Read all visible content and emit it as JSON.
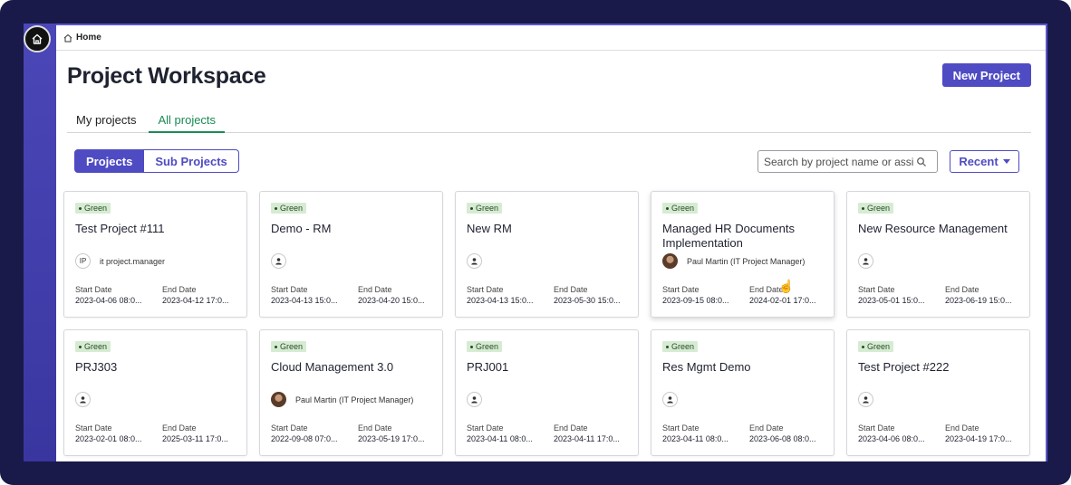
{
  "breadcrumb": {
    "home_label": "Home"
  },
  "page": {
    "title": "Project Workspace",
    "new_project_label": "New Project"
  },
  "tabs": [
    {
      "label": "My projects",
      "active": false
    },
    {
      "label": "All projects",
      "active": true
    }
  ],
  "toggle": {
    "projects_label": "Projects",
    "subprojects_label": "Sub Projects"
  },
  "search": {
    "placeholder": "Search by project name or assi"
  },
  "sort": {
    "label": "Recent"
  },
  "colors": {
    "accent": "#4e4bc3",
    "status_green_bg": "#d6ecd2",
    "tab_active": "#1b8a55"
  },
  "labels": {
    "start": "Start Date",
    "end": "End Date"
  },
  "cards": [
    {
      "status": "Green",
      "title": "Test Project #111",
      "owner": "it project.manager",
      "avatar_initials": "IP",
      "start": "2023-04-06 08:0...",
      "end": "2023-04-12 17:0..."
    },
    {
      "status": "Green",
      "title": "Demo - RM",
      "owner": "",
      "start": "2023-04-13 15:0...",
      "end": "2023-04-20 15:0..."
    },
    {
      "status": "Green",
      "title": "New RM",
      "owner": "",
      "start": "2023-04-13 15:0...",
      "end": "2023-05-30 15:0..."
    },
    {
      "status": "Green",
      "title": "Managed HR Documents Implementation",
      "owner": "Paul Martin (IT Project Manager)",
      "start": "2023-09-15 08:0...",
      "end": "2024-02-01 17:0..."
    },
    {
      "status": "Green",
      "title": "New Resource Management",
      "owner": "",
      "start": "2023-05-01 15:0...",
      "end": "2023-06-19 15:0..."
    },
    {
      "status": "Green",
      "title": "PRJ303",
      "owner": "",
      "start": "2023-02-01 08:0...",
      "end": "2025-03-11 17:0..."
    },
    {
      "status": "Green",
      "title": "Cloud Management 3.0",
      "owner": "Paul Martin (IT Project Manager)",
      "start": "2022-09-08 07:0...",
      "end": "2023-05-19 17:0..."
    },
    {
      "status": "Green",
      "title": "PRJ001",
      "owner": "",
      "start": "2023-04-11 08:0...",
      "end": "2023-04-11 17:0..."
    },
    {
      "status": "Green",
      "title": "Res Mgmt Demo",
      "owner": "",
      "start": "2023-04-11 08:0...",
      "end": "2023-06-08 08:0..."
    },
    {
      "status": "Green",
      "title": "Test Project #222",
      "owner": "",
      "start": "2023-04-06 08:0...",
      "end": "2023-04-19 17:0..."
    }
  ]
}
